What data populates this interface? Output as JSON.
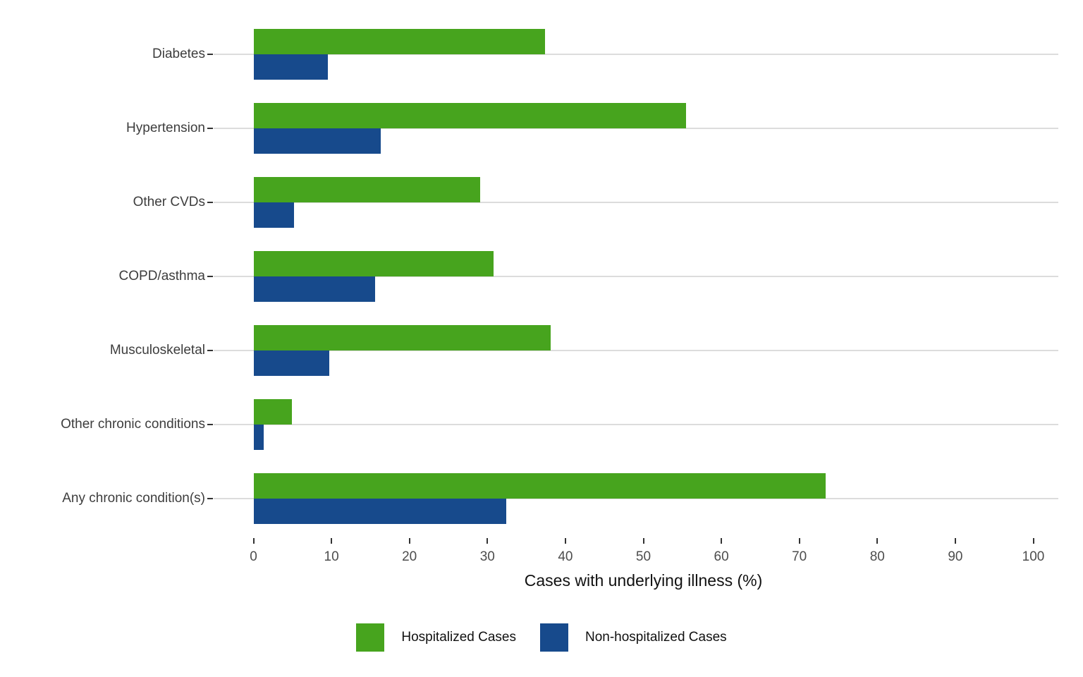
{
  "chart_data": {
    "type": "bar",
    "orientation": "horizontal",
    "title": "",
    "xlabel": "Cases with underlying illness (%)",
    "ylabel": "",
    "xlim": [
      0,
      100
    ],
    "xticks": [
      0,
      10,
      20,
      30,
      40,
      50,
      60,
      70,
      80,
      90,
      100
    ],
    "grid": "horizontal-category-lines",
    "legend_position": "bottom-center",
    "categories": [
      "Diabetes",
      "Hypertension",
      "Other CVDs",
      "COPD/asthma",
      "Musculoskeletal",
      "Other chronic conditions",
      "Any chronic condition(s)"
    ],
    "series": [
      {
        "name": "Hospitalized Cases",
        "color": "#47a41e",
        "values": [
          37.4,
          55.5,
          29.1,
          30.8,
          38.1,
          4.9,
          73.4
        ]
      },
      {
        "name": "Non-hospitalized Cases",
        "color": "#174a8c",
        "values": [
          9.5,
          16.3,
          5.2,
          15.6,
          9.7,
          1.3,
          32.4
        ]
      }
    ]
  },
  "colors": {
    "hospitalized_green": "#47a41e",
    "non_hospitalized_blue": "#174a8c",
    "gridline": "#dcdcdc",
    "tick_mark": "#333333",
    "tick_label": "#4d4d4d",
    "category_label": "#3d3d3d",
    "background": "#ffffff"
  }
}
